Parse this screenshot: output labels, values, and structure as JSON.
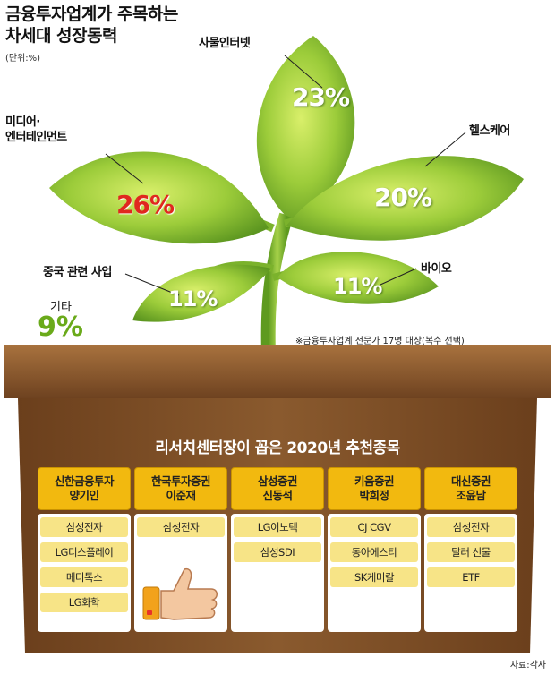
{
  "title_line1": "금융투자업계가 주목하는",
  "title_line2": "차세대 성장동력",
  "unit": "(단위:%)",
  "note": "※금융투자업계 전문가 17명 대상(복수 선택)",
  "source": "자료:각사",
  "colors": {
    "highlight": "#e0281f",
    "other": "#6aaa1a",
    "box": "#7a4a22",
    "header": "#f2b90f",
    "item": "#f7e487"
  },
  "chart_data": {
    "type": "pie",
    "title": "금융투자업계가 주목하는 차세대 성장동력",
    "unit": "%",
    "categories": [
      "사물인터넷",
      "미디어·엔터테인먼트",
      "헬스케어",
      "중국 관련 사업",
      "바이오",
      "기타"
    ],
    "values": [
      23,
      26,
      20,
      11,
      11,
      9
    ],
    "value_labels": [
      "23%",
      "26%",
      "20%",
      "11%",
      "11%",
      "9%"
    ],
    "label_lines": {
      "media": [
        "미디어·",
        "엔터테인먼트"
      ]
    },
    "highlight": "미디어·엔터테인먼트"
  },
  "table": {
    "title": "리서치센터장이 꼽은 2020년 추천종목",
    "columns": [
      {
        "firm": "신한금융투자",
        "name": "양기인",
        "items": [
          "삼성전자",
          "LG디스플레이",
          "메디톡스",
          "LG화학"
        ]
      },
      {
        "firm": "한국투자증권",
        "name": "이준재",
        "items": [
          "삼성전자"
        ]
      },
      {
        "firm": "삼성증권",
        "name": "신동석",
        "items": [
          "LG이노텍",
          "삼성SDI"
        ]
      },
      {
        "firm": "키움증권",
        "name": "박희정",
        "items": [
          "CJ CGV",
          "동아에스티",
          "SK케미칼"
        ]
      },
      {
        "firm": "대신증권",
        "name": "조윤남",
        "items": [
          "삼성전자",
          "달러 선물",
          "ETF"
        ]
      }
    ]
  }
}
